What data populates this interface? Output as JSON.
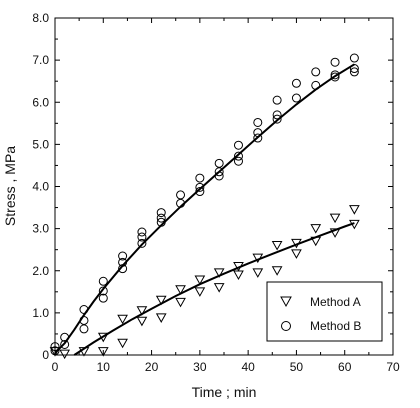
{
  "chart_data": {
    "type": "scatter",
    "xlabel": "Time ; min",
    "ylabel": "Stress , MPa",
    "xlim": [
      0,
      70
    ],
    "ylim": [
      0,
      8
    ],
    "xticks": [
      "0",
      "10",
      "20",
      "30",
      "40",
      "50",
      "60",
      "70"
    ],
    "yticks": [
      "0",
      "1.0",
      "2.0",
      "3.0",
      "4.0",
      "5.0",
      "6.0",
      "7.0",
      "8.0"
    ],
    "grid": false,
    "legend_position": "bottom-right",
    "series": [
      {
        "name": "Method A",
        "marker": "triangle-down",
        "points": [
          [
            0,
            0.08
          ],
          [
            2,
            0.02
          ],
          [
            6,
            0.08
          ],
          [
            10,
            0.08
          ],
          [
            10,
            0.42
          ],
          [
            14,
            0.28
          ],
          [
            14,
            0.85
          ],
          [
            18,
            0.8
          ],
          [
            18,
            1.05
          ],
          [
            22,
            0.88
          ],
          [
            22,
            1.3
          ],
          [
            26,
            1.25
          ],
          [
            26,
            1.55
          ],
          [
            30,
            1.5
          ],
          [
            30,
            1.78
          ],
          [
            34,
            1.6
          ],
          [
            34,
            1.95
          ],
          [
            38,
            1.9
          ],
          [
            38,
            2.1
          ],
          [
            42,
            1.95
          ],
          [
            42,
            2.3
          ],
          [
            46,
            2.0
          ],
          [
            46,
            2.6
          ],
          [
            50,
            2.4
          ],
          [
            50,
            2.65
          ],
          [
            54,
            2.7
          ],
          [
            54,
            3.0
          ],
          [
            58,
            2.9
          ],
          [
            58,
            3.25
          ],
          [
            62,
            3.1
          ],
          [
            62,
            3.45
          ]
        ],
        "fit": [
          [
            4,
            0.0
          ],
          [
            8,
            0.3
          ],
          [
            12,
            0.58
          ],
          [
            16,
            0.85
          ],
          [
            20,
            1.1
          ],
          [
            25,
            1.4
          ],
          [
            30,
            1.68
          ],
          [
            35,
            1.93
          ],
          [
            40,
            2.17
          ],
          [
            45,
            2.4
          ],
          [
            50,
            2.62
          ],
          [
            55,
            2.84
          ],
          [
            60,
            3.05
          ],
          [
            62,
            3.13
          ]
        ]
      },
      {
        "name": "Method B",
        "marker": "circle",
        "points": [
          [
            0,
            0.2
          ],
          [
            0,
            0.1
          ],
          [
            2,
            0.42
          ],
          [
            2,
            0.25
          ],
          [
            6,
            1.08
          ],
          [
            6,
            0.62
          ],
          [
            6,
            0.82
          ],
          [
            10,
            1.75
          ],
          [
            10,
            1.52
          ],
          [
            10,
            1.35
          ],
          [
            14,
            2.35
          ],
          [
            14,
            2.2
          ],
          [
            14,
            2.05
          ],
          [
            18,
            2.92
          ],
          [
            18,
            2.8
          ],
          [
            18,
            2.65
          ],
          [
            22,
            3.38
          ],
          [
            22,
            3.25
          ],
          [
            22,
            3.15
          ],
          [
            26,
            3.8
          ],
          [
            26,
            3.6
          ],
          [
            30,
            4.2
          ],
          [
            30,
            3.98
          ],
          [
            30,
            3.88
          ],
          [
            34,
            4.55
          ],
          [
            34,
            4.35
          ],
          [
            34,
            4.25
          ],
          [
            38,
            4.98
          ],
          [
            38,
            4.72
          ],
          [
            38,
            4.6
          ],
          [
            42,
            5.52
          ],
          [
            42,
            5.28
          ],
          [
            42,
            5.15
          ],
          [
            46,
            6.05
          ],
          [
            46,
            5.7
          ],
          [
            46,
            5.6
          ],
          [
            50,
            6.45
          ],
          [
            50,
            6.1
          ],
          [
            54,
            6.72
          ],
          [
            54,
            6.4
          ],
          [
            58,
            6.95
          ],
          [
            58,
            6.65
          ],
          [
            58,
            6.6
          ],
          [
            62,
            7.05
          ],
          [
            62,
            6.8
          ],
          [
            62,
            6.72
          ]
        ],
        "fit": [
          [
            0,
            0.05
          ],
          [
            2,
            0.28
          ],
          [
            4,
            0.6
          ],
          [
            6,
            0.95
          ],
          [
            8,
            1.27
          ],
          [
            10,
            1.57
          ],
          [
            14,
            2.12
          ],
          [
            18,
            2.62
          ],
          [
            22,
            3.08
          ],
          [
            26,
            3.52
          ],
          [
            30,
            3.94
          ],
          [
            34,
            4.35
          ],
          [
            38,
            4.76
          ],
          [
            42,
            5.17
          ],
          [
            46,
            5.57
          ],
          [
            50,
            5.95
          ],
          [
            54,
            6.3
          ],
          [
            58,
            6.62
          ],
          [
            62,
            6.9
          ]
        ]
      }
    ]
  }
}
